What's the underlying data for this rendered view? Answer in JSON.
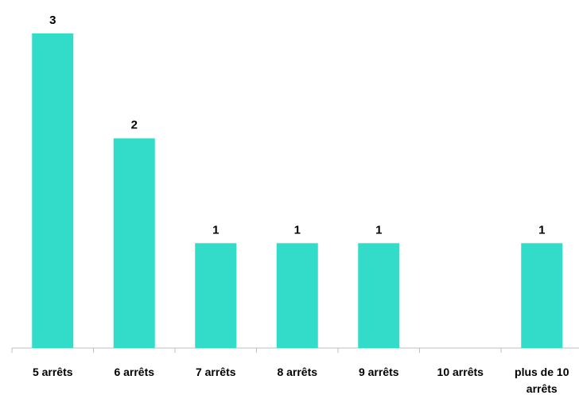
{
  "chart_data": {
    "type": "bar",
    "categories": [
      "5 arrêts",
      "6 arrêts",
      "7 arrêts",
      "8 arrêts",
      "9 arrêts",
      "10 arrêts",
      "plus de 10 arrêts"
    ],
    "values": [
      3,
      2,
      1,
      1,
      1,
      0,
      1
    ],
    "color": "#33dcc9",
    "ylim": [
      0,
      3
    ]
  }
}
